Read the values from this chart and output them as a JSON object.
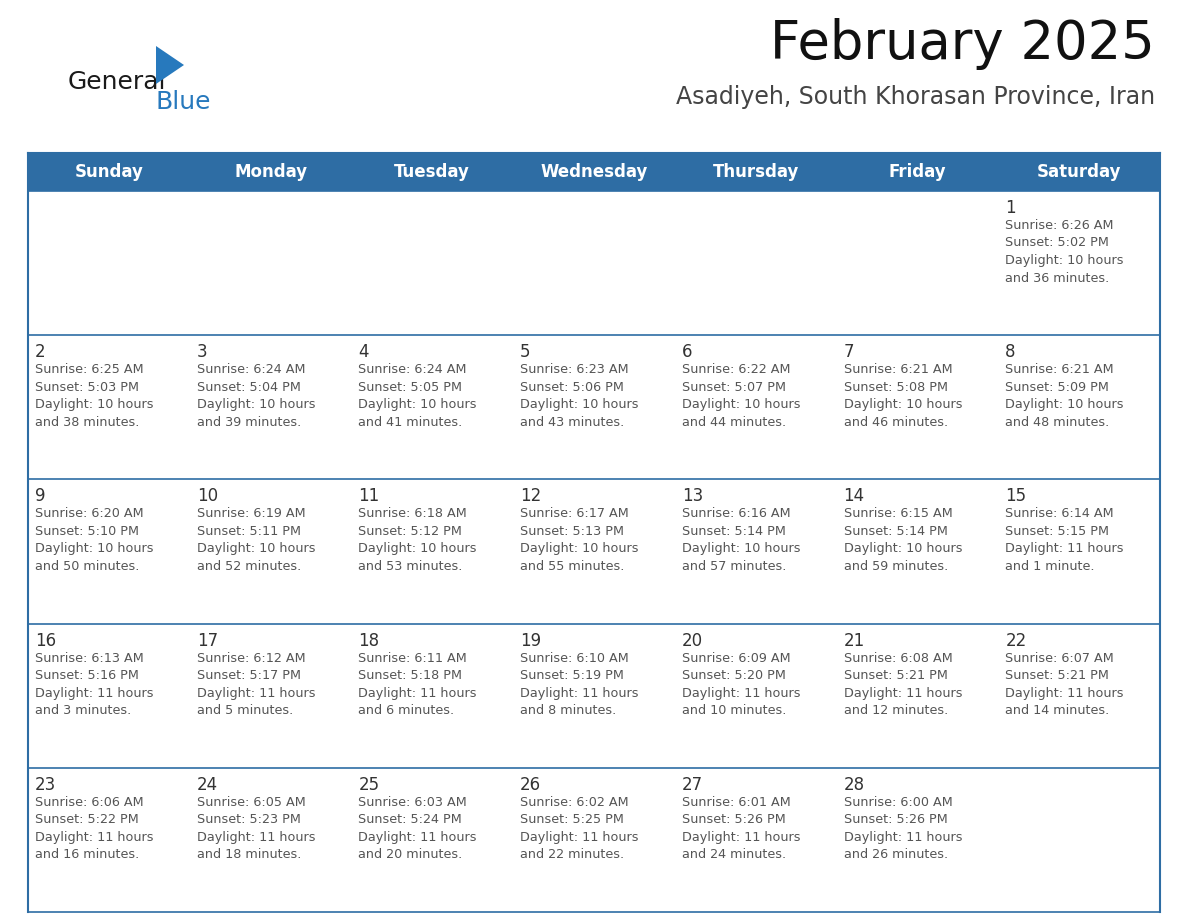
{
  "title": "February 2025",
  "subtitle": "Asadiyeh, South Khorasan Province, Iran",
  "header_color": "#2E6DA4",
  "header_text_color": "#FFFFFF",
  "cell_bg_color": "#FFFFFF",
  "cell_bg_alt": "#F2F4F8",
  "border_color": "#2E6DA4",
  "week_line_color": "#3A6EA8",
  "day_number_color": "#333333",
  "text_color": "#555555",
  "days_of_week": [
    "Sunday",
    "Monday",
    "Tuesday",
    "Wednesday",
    "Thursday",
    "Friday",
    "Saturday"
  ],
  "weeks": [
    [
      {
        "day": null,
        "info": null
      },
      {
        "day": null,
        "info": null
      },
      {
        "day": null,
        "info": null
      },
      {
        "day": null,
        "info": null
      },
      {
        "day": null,
        "info": null
      },
      {
        "day": null,
        "info": null
      },
      {
        "day": 1,
        "info": "Sunrise: 6:26 AM\nSunset: 5:02 PM\nDaylight: 10 hours\nand 36 minutes."
      }
    ],
    [
      {
        "day": 2,
        "info": "Sunrise: 6:25 AM\nSunset: 5:03 PM\nDaylight: 10 hours\nand 38 minutes."
      },
      {
        "day": 3,
        "info": "Sunrise: 6:24 AM\nSunset: 5:04 PM\nDaylight: 10 hours\nand 39 minutes."
      },
      {
        "day": 4,
        "info": "Sunrise: 6:24 AM\nSunset: 5:05 PM\nDaylight: 10 hours\nand 41 minutes."
      },
      {
        "day": 5,
        "info": "Sunrise: 6:23 AM\nSunset: 5:06 PM\nDaylight: 10 hours\nand 43 minutes."
      },
      {
        "day": 6,
        "info": "Sunrise: 6:22 AM\nSunset: 5:07 PM\nDaylight: 10 hours\nand 44 minutes."
      },
      {
        "day": 7,
        "info": "Sunrise: 6:21 AM\nSunset: 5:08 PM\nDaylight: 10 hours\nand 46 minutes."
      },
      {
        "day": 8,
        "info": "Sunrise: 6:21 AM\nSunset: 5:09 PM\nDaylight: 10 hours\nand 48 minutes."
      }
    ],
    [
      {
        "day": 9,
        "info": "Sunrise: 6:20 AM\nSunset: 5:10 PM\nDaylight: 10 hours\nand 50 minutes."
      },
      {
        "day": 10,
        "info": "Sunrise: 6:19 AM\nSunset: 5:11 PM\nDaylight: 10 hours\nand 52 minutes."
      },
      {
        "day": 11,
        "info": "Sunrise: 6:18 AM\nSunset: 5:12 PM\nDaylight: 10 hours\nand 53 minutes."
      },
      {
        "day": 12,
        "info": "Sunrise: 6:17 AM\nSunset: 5:13 PM\nDaylight: 10 hours\nand 55 minutes."
      },
      {
        "day": 13,
        "info": "Sunrise: 6:16 AM\nSunset: 5:14 PM\nDaylight: 10 hours\nand 57 minutes."
      },
      {
        "day": 14,
        "info": "Sunrise: 6:15 AM\nSunset: 5:14 PM\nDaylight: 10 hours\nand 59 minutes."
      },
      {
        "day": 15,
        "info": "Sunrise: 6:14 AM\nSunset: 5:15 PM\nDaylight: 11 hours\nand 1 minute."
      }
    ],
    [
      {
        "day": 16,
        "info": "Sunrise: 6:13 AM\nSunset: 5:16 PM\nDaylight: 11 hours\nand 3 minutes."
      },
      {
        "day": 17,
        "info": "Sunrise: 6:12 AM\nSunset: 5:17 PM\nDaylight: 11 hours\nand 5 minutes."
      },
      {
        "day": 18,
        "info": "Sunrise: 6:11 AM\nSunset: 5:18 PM\nDaylight: 11 hours\nand 6 minutes."
      },
      {
        "day": 19,
        "info": "Sunrise: 6:10 AM\nSunset: 5:19 PM\nDaylight: 11 hours\nand 8 minutes."
      },
      {
        "day": 20,
        "info": "Sunrise: 6:09 AM\nSunset: 5:20 PM\nDaylight: 11 hours\nand 10 minutes."
      },
      {
        "day": 21,
        "info": "Sunrise: 6:08 AM\nSunset: 5:21 PM\nDaylight: 11 hours\nand 12 minutes."
      },
      {
        "day": 22,
        "info": "Sunrise: 6:07 AM\nSunset: 5:21 PM\nDaylight: 11 hours\nand 14 minutes."
      }
    ],
    [
      {
        "day": 23,
        "info": "Sunrise: 6:06 AM\nSunset: 5:22 PM\nDaylight: 11 hours\nand 16 minutes."
      },
      {
        "day": 24,
        "info": "Sunrise: 6:05 AM\nSunset: 5:23 PM\nDaylight: 11 hours\nand 18 minutes."
      },
      {
        "day": 25,
        "info": "Sunrise: 6:03 AM\nSunset: 5:24 PM\nDaylight: 11 hours\nand 20 minutes."
      },
      {
        "day": 26,
        "info": "Sunrise: 6:02 AM\nSunset: 5:25 PM\nDaylight: 11 hours\nand 22 minutes."
      },
      {
        "day": 27,
        "info": "Sunrise: 6:01 AM\nSunset: 5:26 PM\nDaylight: 11 hours\nand 24 minutes."
      },
      {
        "day": 28,
        "info": "Sunrise: 6:00 AM\nSunset: 5:26 PM\nDaylight: 11 hours\nand 26 minutes."
      },
      {
        "day": null,
        "info": null
      }
    ]
  ],
  "logo_general_color": "#1a1a1a",
  "logo_blue_color": "#2779BD",
  "title_fontsize": 38,
  "subtitle_fontsize": 17,
  "header_fontsize": 12,
  "day_num_fontsize": 12,
  "info_fontsize": 9.2
}
